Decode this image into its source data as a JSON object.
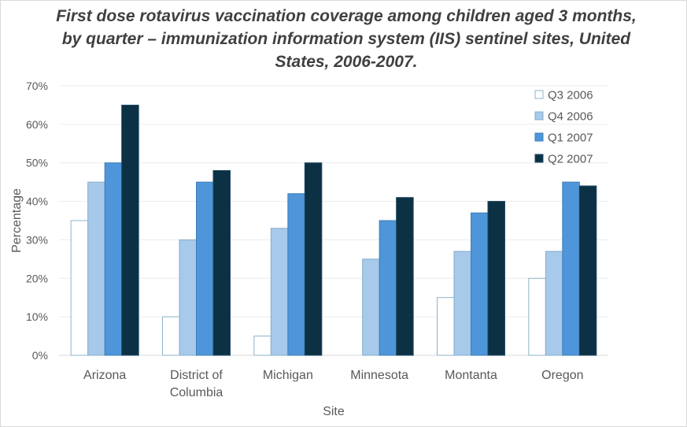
{
  "chart_data": {
    "type": "bar",
    "title": "First dose rotavirus vaccination coverage among children aged 3 months, by quarter – immunization information system (IIS) sentinel sites, United States, 2006-2007.",
    "xlabel": "Site",
    "ylabel": "Percentage",
    "ylim": [
      0,
      70
    ],
    "yticks": [
      "0%",
      "10%",
      "20%",
      "30%",
      "40%",
      "50%",
      "60%",
      "70%"
    ],
    "grid": true,
    "legend_position": "top-right",
    "categories": [
      "Arizona",
      "District of Columbia",
      "Michigan",
      "Minnesota",
      "Montanta",
      "Oregon"
    ],
    "category_lines": [
      [
        "Arizona"
      ],
      [
        "District of",
        "Columbia"
      ],
      [
        "Michigan"
      ],
      [
        "Minnesota"
      ],
      [
        "Montanta"
      ],
      [
        "Oregon"
      ]
    ],
    "series": [
      {
        "name": "Q3 2006",
        "color": "#ffffff",
        "stroke": "#8fb3c9",
        "values": [
          35,
          10,
          5,
          0,
          15,
          20
        ]
      },
      {
        "name": "Q4 2006",
        "color": "#a7c9ea",
        "stroke": "#86aecb",
        "values": [
          45,
          30,
          33,
          25,
          27,
          27
        ]
      },
      {
        "name": "Q1 2007",
        "color": "#4e95d9",
        "stroke": "#3f7fb8",
        "values": [
          50,
          45,
          42,
          35,
          37,
          45
        ]
      },
      {
        "name": "Q2 2007",
        "color": "#0c3044",
        "stroke": "#1d4a63",
        "values": [
          65,
          48,
          50,
          41,
          40,
          44
        ]
      }
    ]
  }
}
